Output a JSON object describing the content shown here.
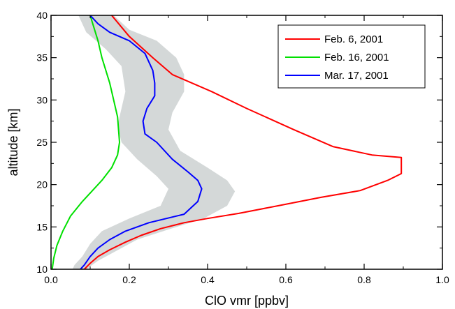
{
  "chart_data": {
    "type": "line",
    "title": "",
    "xlabel": "ClO vmr [ppbv]",
    "ylabel": "altitude [km]",
    "xlim": [
      0.0,
      1.0
    ],
    "ylim": [
      10,
      40
    ],
    "x_ticks": [
      0.0,
      0.2,
      0.4,
      0.6,
      0.8,
      1.0
    ],
    "x_tick_labels": [
      "0.0",
      "0.2",
      "0.4",
      "0.6",
      "0.8",
      "1.0"
    ],
    "y_ticks": [
      10,
      15,
      20,
      25,
      30,
      35,
      40
    ],
    "y_tick_labels": [
      "10",
      "15",
      "20",
      "25",
      "30",
      "35",
      "40"
    ],
    "grid": false,
    "legend_position": "top-right",
    "series": [
      {
        "name": "Feb. 6, 2001",
        "color": "#ff0000",
        "points": [
          [
            0.155,
            40
          ],
          [
            0.2,
            37.5
          ],
          [
            0.26,
            35
          ],
          [
            0.31,
            33
          ],
          [
            0.41,
            31
          ],
          [
            0.5,
            29
          ],
          [
            0.62,
            26.5
          ],
          [
            0.72,
            24.5
          ],
          [
            0.82,
            23.5
          ],
          [
            0.895,
            23.2
          ],
          [
            0.895,
            21.3
          ],
          [
            0.86,
            20.5
          ],
          [
            0.79,
            19.3
          ],
          [
            0.69,
            18.5
          ],
          [
            0.58,
            17.5
          ],
          [
            0.48,
            16.6
          ],
          [
            0.4,
            16
          ],
          [
            0.34,
            15.5
          ],
          [
            0.28,
            14.8
          ],
          [
            0.23,
            14
          ],
          [
            0.19,
            13.2
          ],
          [
            0.15,
            12.3
          ],
          [
            0.12,
            11.5
          ],
          [
            0.1,
            10.7
          ],
          [
            0.085,
            10
          ]
        ]
      },
      {
        "name": "Feb. 16, 2001",
        "color": "#00e000",
        "points": [
          [
            0.1,
            40
          ],
          [
            0.12,
            37
          ],
          [
            0.13,
            35
          ],
          [
            0.15,
            32
          ],
          [
            0.16,
            30
          ],
          [
            0.17,
            28
          ],
          [
            0.175,
            25
          ],
          [
            0.17,
            23.5
          ],
          [
            0.155,
            22
          ],
          [
            0.13,
            20.5
          ],
          [
            0.1,
            19
          ],
          [
            0.08,
            18
          ],
          [
            0.05,
            16.3
          ],
          [
            0.03,
            14.5
          ],
          [
            0.015,
            12.8
          ],
          [
            0.007,
            11.3
          ],
          [
            0.003,
            10
          ]
        ]
      },
      {
        "name": "Mar. 17, 2001",
        "color": "#0000ff",
        "points": [
          [
            0.1,
            40
          ],
          [
            0.12,
            39
          ],
          [
            0.15,
            38
          ],
          [
            0.2,
            37
          ],
          [
            0.24,
            35.5
          ],
          [
            0.26,
            33.5
          ],
          [
            0.265,
            32
          ],
          [
            0.265,
            30.5
          ],
          [
            0.245,
            29
          ],
          [
            0.235,
            27.5
          ],
          [
            0.24,
            26
          ],
          [
            0.27,
            25
          ],
          [
            0.31,
            23
          ],
          [
            0.35,
            21.5
          ],
          [
            0.375,
            20.5
          ],
          [
            0.385,
            19.5
          ],
          [
            0.375,
            18
          ],
          [
            0.34,
            16.5
          ],
          [
            0.25,
            15.5
          ],
          [
            0.19,
            14.5
          ],
          [
            0.15,
            13.5
          ],
          [
            0.12,
            12.5
          ],
          [
            0.1,
            11.5
          ],
          [
            0.085,
            10.5
          ],
          [
            0.075,
            10
          ]
        ]
      }
    ],
    "uncertainty_band": {
      "series": "Mar. 17, 2001",
      "color": "#d4d8d8",
      "lower": [
        [
          0.07,
          40
        ],
        [
          0.09,
          38
        ],
        [
          0.14,
          36
        ],
        [
          0.18,
          34
        ],
        [
          0.19,
          31
        ],
        [
          0.18,
          29
        ],
        [
          0.17,
          27
        ],
        [
          0.18,
          25
        ],
        [
          0.22,
          23
        ],
        [
          0.27,
          21
        ],
        [
          0.3,
          19.5
        ],
        [
          0.28,
          17.5
        ],
        [
          0.2,
          16
        ],
        [
          0.13,
          14.5
        ],
        [
          0.1,
          13
        ],
        [
          0.08,
          11.5
        ],
        [
          0.06,
          10.5
        ],
        [
          0.055,
          10
        ]
      ],
      "upper": [
        [
          0.16,
          40
        ],
        [
          0.2,
          38.3
        ],
        [
          0.27,
          37
        ],
        [
          0.32,
          35
        ],
        [
          0.34,
          33
        ],
        [
          0.34,
          31
        ],
        [
          0.31,
          28.5
        ],
        [
          0.3,
          26.5
        ],
        [
          0.33,
          24
        ],
        [
          0.4,
          22
        ],
        [
          0.45,
          20.5
        ],
        [
          0.47,
          19.2
        ],
        [
          0.45,
          17.5
        ],
        [
          0.39,
          16
        ],
        [
          0.3,
          14.7
        ],
        [
          0.22,
          13.5
        ],
        [
          0.16,
          12
        ],
        [
          0.12,
          11
        ],
        [
          0.09,
          10
        ]
      ]
    }
  }
}
